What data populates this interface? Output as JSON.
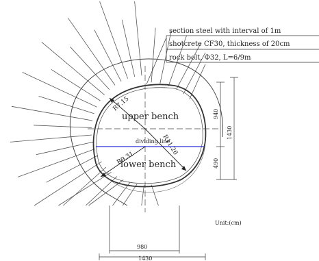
{
  "legend": {
    "section_steel": "section steel with interval of 1m",
    "shotcrete": "shotcrete CF30, thickness of 20cm",
    "rock_bolt": "rock bolt, Φ32, L=6/9m"
  },
  "zones": {
    "upper": "upper bench",
    "lower": "lower bench",
    "dividing": "dividing line"
  },
  "radii": {
    "r1": "R7.15",
    "r2": "R11.26",
    "r3": "R9.31"
  },
  "dims": {
    "upper_height": "940",
    "total_height": "1430",
    "lower_height": "490",
    "bottom_width": "980",
    "total_width": "1430"
  },
  "unit": "Unit:(cm)",
  "colors": {
    "dividing_line": "#2b2bd9",
    "line": "#333333"
  }
}
